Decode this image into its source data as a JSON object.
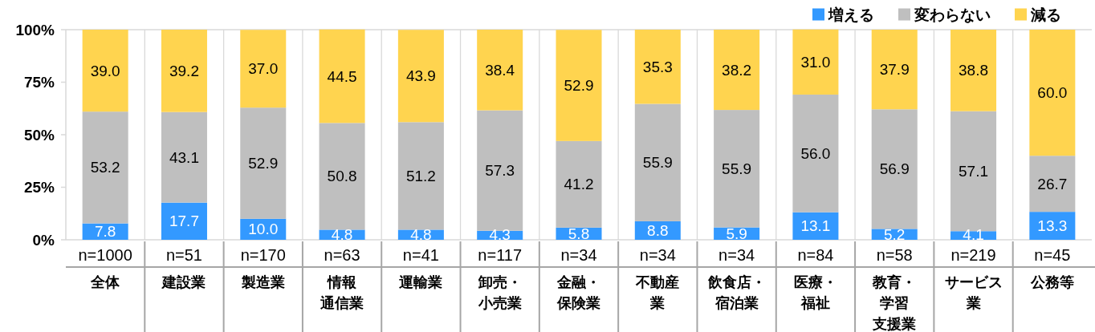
{
  "chart_data": {
    "type": "bar",
    "stacked": true,
    "categories": [
      "n=1000\n全体",
      "n=51\n建設業",
      "n=170\n製造業",
      "n=63\n情報通信業",
      "n=41\n運輸業",
      "n=117\n卸売・小売業",
      "n=34\n金融・保険業",
      "n=34\n不動産業",
      "n=34\n飲食店・宿泊業",
      "n=84\n医療・福祉",
      "n=58\n教育・学習支援業",
      "n=219\nサービス業",
      "n=45\n公務等"
    ],
    "series": [
      {
        "name": "増える",
        "color": "#3399ff",
        "values": [
          7.8,
          17.7,
          10.0,
          4.8,
          4.8,
          4.3,
          5.8,
          8.8,
          5.9,
          13.1,
          5.2,
          4.1,
          13.3
        ],
        "value_labels": [
          "7.8",
          "17.7",
          "10.0",
          "4.8",
          "4.8",
          "4.3",
          "5.8",
          "8.8",
          "5.9",
          "13.1",
          "5.2",
          "4.1",
          "13.3"
        ]
      },
      {
        "name": "変わらない",
        "color": "#bfbfbf",
        "values": [
          53.2,
          43.1,
          52.9,
          50.8,
          51.2,
          57.3,
          41.2,
          55.9,
          55.9,
          56.0,
          56.9,
          57.1,
          26.7
        ],
        "value_labels": [
          "53.2",
          "43.1",
          "52.9",
          "50.8",
          "51.2",
          "57.3",
          "41.2",
          "55.9",
          "55.9",
          "56.0",
          "56.9",
          "57.1",
          "26.7"
        ]
      },
      {
        "name": "減る",
        "color": "#ffd44f",
        "values": [
          39.0,
          39.2,
          37.0,
          44.5,
          43.9,
          38.4,
          52.9,
          35.3,
          38.2,
          31.0,
          37.9,
          38.8,
          60.0
        ],
        "value_labels": [
          "39.0",
          "39.2",
          "37.0",
          "44.5",
          "43.9",
          "38.4",
          "52.9",
          "35.3",
          "38.2",
          "31.0",
          "37.9",
          "38.8",
          "60.0"
        ]
      }
    ],
    "ylim": [
      0,
      100
    ],
    "yticks": [
      {
        "value": 0,
        "label": "0%"
      },
      {
        "value": 25,
        "label": "25%"
      },
      {
        "value": 50,
        "label": "50%"
      },
      {
        "value": 75,
        "label": "75%"
      },
      {
        "value": 100,
        "label": "100%"
      }
    ],
    "grid": "x",
    "legend": "top right"
  }
}
